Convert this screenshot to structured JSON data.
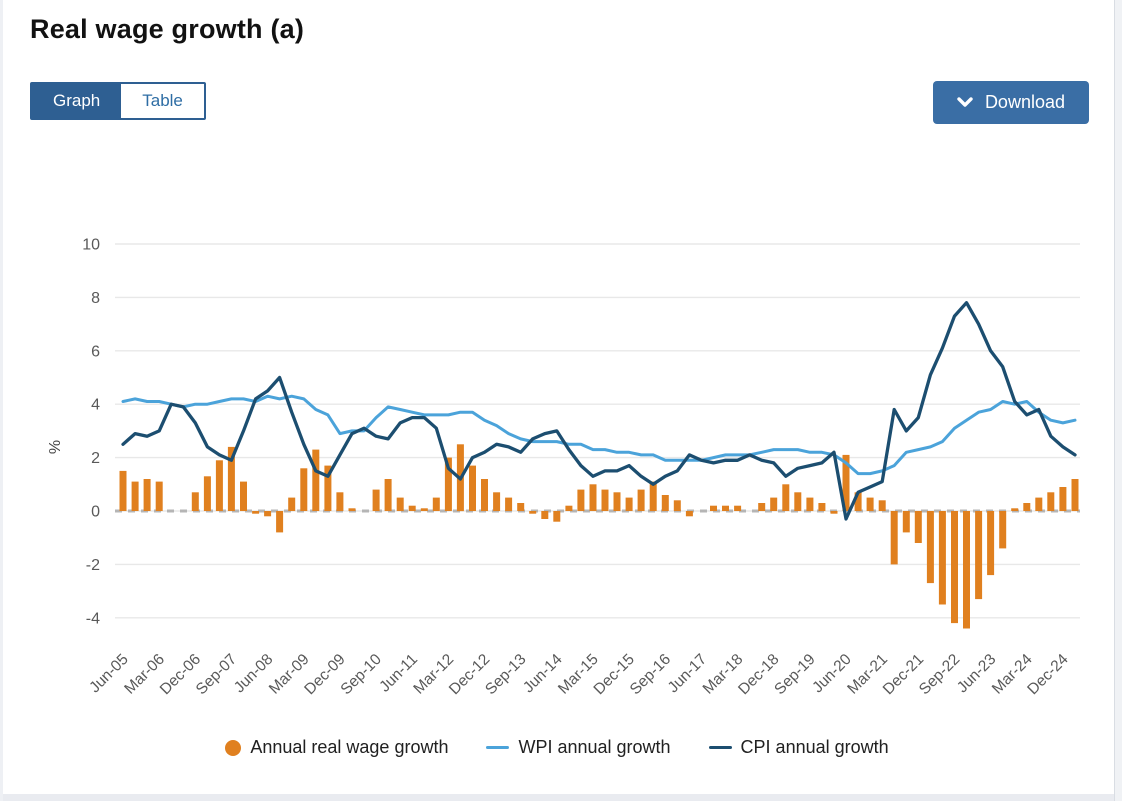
{
  "page": {
    "title": "Real wage growth (a)"
  },
  "toolbar": {
    "graph_label": "Graph",
    "table_label": "Table",
    "download_label": "Download"
  },
  "colors": {
    "bar_orange": "#e0801f",
    "wpi_blue": "#4ba3da",
    "cpi_navy": "#1c4e70",
    "button_blue": "#3a6ea5",
    "toggle_blue": "#2e5f92",
    "gridline": "#e8e8e8",
    "zero_dash": "#b5b5b5",
    "tick_text": "#595959"
  },
  "chart_data": {
    "type": "bar",
    "title": "Real wage growth (a)",
    "xlabel": "",
    "ylabel": "%",
    "ylim": [
      -4.7,
      10.6
    ],
    "y_ticks": [
      10,
      8,
      6,
      4,
      2,
      0,
      -2,
      -4
    ],
    "grid": true,
    "zero_line": "dashed",
    "legend_position": "bottom",
    "x": [
      "Jun-05",
      "Sep-05",
      "Dec-05",
      "Mar-06",
      "Jun-06",
      "Sep-06",
      "Dec-06",
      "Mar-07",
      "Jun-07",
      "Sep-07",
      "Dec-07",
      "Mar-08",
      "Jun-08",
      "Sep-08",
      "Dec-08",
      "Mar-09",
      "Jun-09",
      "Sep-09",
      "Dec-09",
      "Mar-10",
      "Jun-10",
      "Sep-10",
      "Dec-10",
      "Mar-11",
      "Jun-11",
      "Sep-11",
      "Dec-11",
      "Mar-12",
      "Jun-12",
      "Sep-12",
      "Dec-12",
      "Mar-13",
      "Jun-13",
      "Sep-13",
      "Dec-13",
      "Mar-14",
      "Jun-14",
      "Sep-14",
      "Dec-14",
      "Mar-15",
      "Jun-15",
      "Sep-15",
      "Dec-15",
      "Mar-16",
      "Jun-16",
      "Sep-16",
      "Dec-16",
      "Mar-17",
      "Jun-17",
      "Sep-17",
      "Dec-17",
      "Mar-18",
      "Jun-18",
      "Sep-18",
      "Dec-18",
      "Mar-19",
      "Jun-19",
      "Sep-19",
      "Dec-19",
      "Mar-20",
      "Jun-20",
      "Sep-20",
      "Dec-20",
      "Mar-21",
      "Jun-21",
      "Sep-21",
      "Dec-21",
      "Mar-22",
      "Jun-22",
      "Sep-22",
      "Dec-22",
      "Mar-23",
      "Jun-23",
      "Sep-23",
      "Dec-23",
      "Mar-24",
      "Jun-24",
      "Sep-24",
      "Dec-24",
      "Mar-25"
    ],
    "x_tick_labels": [
      "Jun-05",
      "Mar-06",
      "Dec-06",
      "Sep-07",
      "Jun-08",
      "Mar-09",
      "Dec-09",
      "Sep-10",
      "Jun-11",
      "Mar-12",
      "Dec-12",
      "Sep-13",
      "Jun-14",
      "Mar-15",
      "Dec-15",
      "Sep-16",
      "Jun-17",
      "Mar-18",
      "Dec-18",
      "Sep-19",
      "Jun-20",
      "Mar-21",
      "Dec-21",
      "Sep-22",
      "Jun-23",
      "Mar-24",
      "Dec-24"
    ],
    "x_tick_every": 3,
    "series": [
      {
        "name": "Annual real wage growth",
        "type": "bar",
        "color": "#e0801f",
        "values": [
          1.5,
          1.1,
          1.2,
          1.1,
          0,
          0,
          0.7,
          1.3,
          1.9,
          2.4,
          1.1,
          -0.1,
          -0.2,
          -0.8,
          0.5,
          1.6,
          2.3,
          1.7,
          0.7,
          0.1,
          0,
          0.8,
          1.2,
          0.5,
          0.2,
          0.1,
          0.5,
          2.0,
          2.5,
          1.7,
          1.2,
          0.7,
          0.5,
          0.3,
          -0.1,
          -0.3,
          -0.4,
          0.2,
          0.8,
          1.0,
          0.8,
          0.7,
          0.5,
          0.8,
          1.1,
          0.6,
          0.4,
          -0.2,
          0,
          0.2,
          0.2,
          0.2,
          0,
          0.3,
          0.5,
          1.0,
          0.7,
          0.5,
          0.3,
          -0.1,
          2.1,
          0.7,
          0.5,
          0.4,
          -2.0,
          -0.8,
          -1.2,
          -2.7,
          -3.5,
          -4.2,
          -4.4,
          -3.3,
          -2.4,
          -1.4,
          0.1,
          0.3,
          0.5,
          0.7,
          0.9,
          1.2
        ]
      },
      {
        "name": "WPI annual growth",
        "type": "line",
        "color": "#4ba3da",
        "values": [
          4.1,
          4.2,
          4.1,
          4.1,
          4.0,
          3.9,
          4.0,
          4.0,
          4.1,
          4.2,
          4.2,
          4.1,
          4.3,
          4.2,
          4.3,
          4.2,
          3.8,
          3.6,
          2.9,
          3.0,
          3.0,
          3.5,
          3.9,
          3.8,
          3.7,
          3.6,
          3.6,
          3.6,
          3.7,
          3.7,
          3.4,
          3.2,
          2.9,
          2.7,
          2.6,
          2.6,
          2.6,
          2.5,
          2.5,
          2.3,
          2.3,
          2.2,
          2.2,
          2.1,
          2.1,
          1.9,
          1.9,
          1.9,
          1.9,
          2.0,
          2.1,
          2.1,
          2.1,
          2.2,
          2.3,
          2.3,
          2.3,
          2.2,
          2.2,
          2.1,
          1.8,
          1.4,
          1.4,
          1.5,
          1.7,
          2.2,
          2.3,
          2.4,
          2.6,
          3.1,
          3.4,
          3.7,
          3.8,
          4.1,
          4.0,
          4.1,
          3.7,
          3.4,
          3.3,
          3.4
        ]
      },
      {
        "name": "CPI annual growth",
        "type": "line",
        "color": "#1c4e70",
        "values": [
          2.5,
          2.9,
          2.8,
          3.0,
          4.0,
          3.9,
          3.3,
          2.4,
          2.1,
          1.9,
          3.0,
          4.2,
          4.5,
          5.0,
          3.7,
          2.5,
          1.5,
          1.3,
          2.1,
          2.9,
          3.1,
          2.8,
          2.7,
          3.3,
          3.5,
          3.5,
          3.1,
          1.6,
          1.2,
          2.0,
          2.2,
          2.5,
          2.4,
          2.2,
          2.7,
          2.9,
          3.0,
          2.3,
          1.7,
          1.3,
          1.5,
          1.5,
          1.7,
          1.3,
          1.0,
          1.3,
          1.5,
          2.1,
          1.9,
          1.8,
          1.9,
          1.9,
          2.1,
          1.9,
          1.8,
          1.3,
          1.6,
          1.7,
          1.8,
          2.2,
          -0.3,
          0.7,
          0.9,
          1.1,
          3.8,
          3.0,
          3.5,
          5.1,
          6.1,
          7.3,
          7.8,
          7.0,
          6.0,
          5.4,
          4.1,
          3.6,
          3.8,
          2.8,
          2.4,
          2.1
        ]
      }
    ]
  }
}
